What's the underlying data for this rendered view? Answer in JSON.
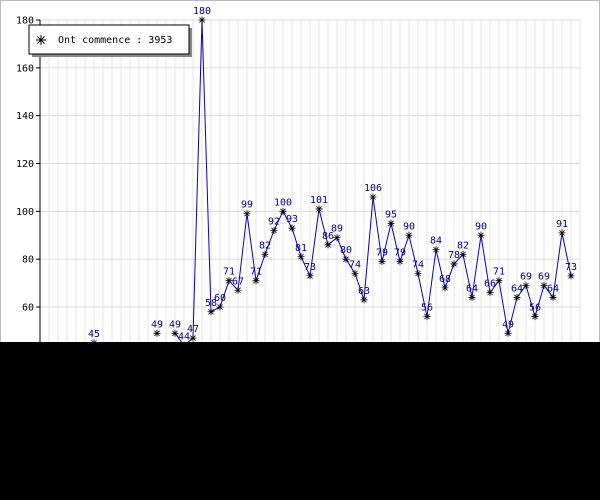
{
  "chart_data": {
    "type": "line",
    "legend": "Ont commence : 3953",
    "series": [
      {
        "name": "Ont commence : 3953",
        "color": "#0000cc",
        "values": [
          null,
          null,
          null,
          null,
          null,
          null,
          45,
          null,
          null,
          null,
          null,
          null,
          null,
          49,
          null,
          49,
          44,
          47,
          180,
          58,
          60,
          71,
          67,
          99,
          71,
          82,
          92,
          100,
          93,
          81,
          73,
          101,
          86,
          89,
          80,
          74,
          63,
          106,
          79,
          95,
          79,
          90,
          74,
          56,
          84,
          68,
          78,
          82,
          64,
          90,
          66,
          71,
          49,
          64,
          69,
          56,
          69,
          64,
          91,
          73,
          null
        ]
      }
    ],
    "ylim": [
      0,
      180
    ],
    "yticks": [
      60,
      80,
      100,
      120,
      140,
      160,
      180
    ],
    "grid": true
  }
}
